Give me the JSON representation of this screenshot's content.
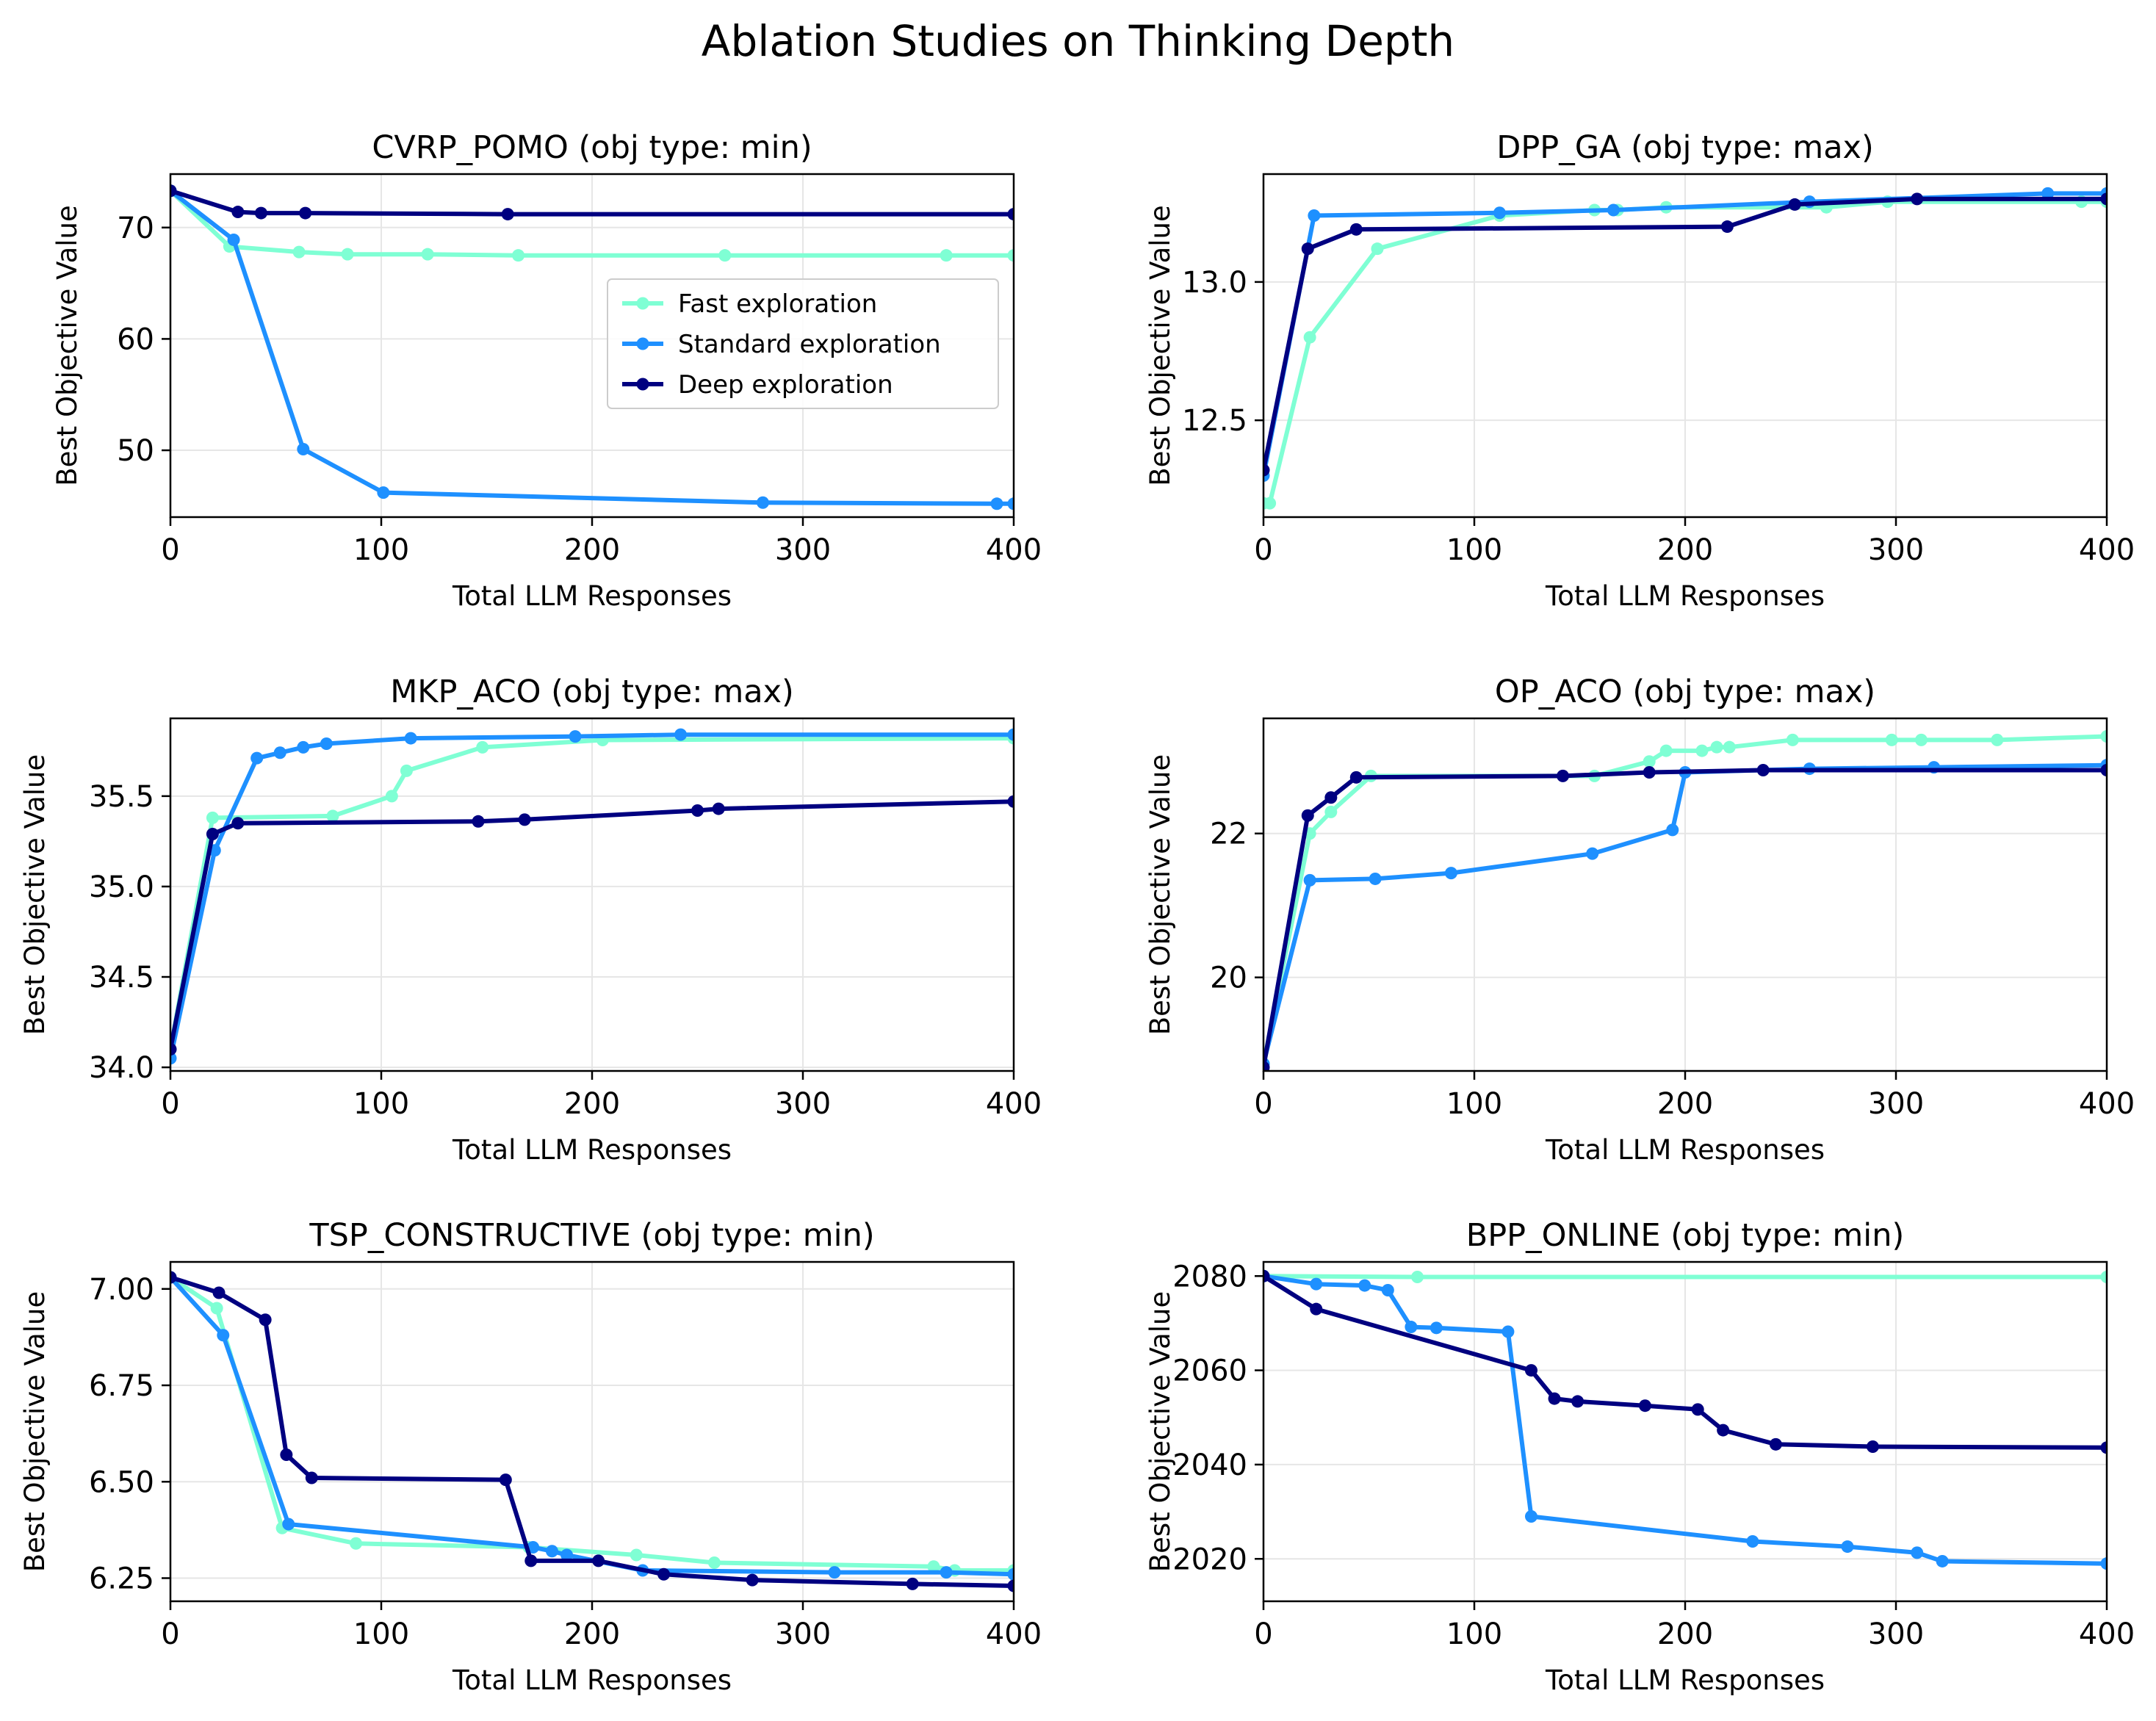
{
  "figure": {
    "title": "Ablation Studies on Thinking Depth"
  },
  "colors": {
    "fast": "#7fffd4",
    "standard": "#1e90ff",
    "deep": "#000080"
  },
  "chart_data": [
    {
      "type": "line",
      "title": "CVRP_POMO (obj type: min)",
      "xlabel": "Total LLM Responses",
      "ylabel": "Best Objective Value",
      "xlim": [
        0,
        400
      ],
      "ylim": [
        44,
        74.8
      ],
      "xticks": [
        0,
        100,
        200,
        300,
        400
      ],
      "yticks": [
        50,
        60,
        70
      ],
      "tick_labels_x": [
        "0",
        "100",
        "200",
        "300",
        "400"
      ],
      "tick_labels_y": [
        "50",
        "60",
        "70"
      ],
      "legend": {
        "position": "right-center",
        "entries": [
          "Fast exploration",
          "Standard exploration",
          "Deep exploration"
        ]
      },
      "series": [
        {
          "name": "Fast exploration",
          "key": "fast",
          "x": [
            0,
            28,
            61,
            84,
            122,
            165,
            263,
            368,
            400
          ],
          "y": [
            73.3,
            68.3,
            67.8,
            67.6,
            67.6,
            67.5,
            67.5,
            67.5,
            67.5
          ]
        },
        {
          "name": "Standard exploration",
          "key": "standard",
          "x": [
            0,
            30,
            63,
            101,
            281,
            392,
            400
          ],
          "y": [
            73.3,
            68.9,
            50.1,
            46.2,
            45.3,
            45.2,
            45.2
          ]
        },
        {
          "name": "Deep exploration",
          "key": "deep",
          "x": [
            0,
            32,
            43,
            64,
            160,
            400
          ],
          "y": [
            73.3,
            71.4,
            71.3,
            71.3,
            71.2,
            71.2
          ]
        }
      ]
    },
    {
      "type": "line",
      "title": "DPP_GA (obj type: max)",
      "xlabel": "Total LLM Responses",
      "ylabel": "Best Objective Value",
      "xlim": [
        0,
        400
      ],
      "ylim": [
        12.15,
        13.39
      ],
      "xticks": [
        0,
        100,
        200,
        300,
        400
      ],
      "yticks": [
        12.5,
        13.0
      ],
      "tick_labels_x": [
        "0",
        "100",
        "200",
        "300",
        "400"
      ],
      "tick_labels_y": [
        "12.5",
        "13.0"
      ],
      "series": [
        {
          "name": "Fast exploration",
          "key": "fast",
          "x": [
            0,
            3,
            22,
            54,
            112,
            157,
            168,
            191,
            267,
            296,
            388,
            400
          ],
          "y": [
            12.2,
            12.2,
            12.8,
            13.12,
            13.24,
            13.26,
            13.26,
            13.27,
            13.27,
            13.29,
            13.29,
            13.29
          ]
        },
        {
          "name": "Standard exploration",
          "key": "standard",
          "x": [
            0,
            24,
            112,
            166,
            259,
            372,
            400
          ],
          "y": [
            12.3,
            13.24,
            13.25,
            13.26,
            13.29,
            13.32,
            13.32
          ]
        },
        {
          "name": "Deep exploration",
          "key": "deep",
          "x": [
            0,
            21,
            44,
            220,
            252,
            310,
            400
          ],
          "y": [
            12.32,
            13.12,
            13.19,
            13.2,
            13.28,
            13.3,
            13.3
          ]
        }
      ]
    },
    {
      "type": "line",
      "title": "MKP_ACO (obj type: max)",
      "xlabel": "Total LLM Responses",
      "ylabel": "Best Objective Value",
      "xlim": [
        0,
        400
      ],
      "ylim": [
        33.98,
        35.93
      ],
      "xticks": [
        0,
        100,
        200,
        300,
        400
      ],
      "yticks": [
        34.0,
        34.5,
        35.0,
        35.5
      ],
      "tick_labels_x": [
        "0",
        "100",
        "200",
        "300",
        "400"
      ],
      "tick_labels_y": [
        "34.0",
        "34.5",
        "35.0",
        "35.5"
      ],
      "series": [
        {
          "name": "Fast exploration",
          "key": "fast",
          "x": [
            0,
            20,
            77,
            105,
            112,
            148,
            205,
            400
          ],
          "y": [
            34.1,
            35.38,
            35.39,
            35.5,
            35.64,
            35.77,
            35.81,
            35.82
          ]
        },
        {
          "name": "Standard exploration",
          "key": "standard",
          "x": [
            0,
            21,
            41,
            52,
            63,
            74,
            114,
            192,
            242,
            400
          ],
          "y": [
            34.05,
            35.2,
            35.71,
            35.74,
            35.77,
            35.79,
            35.82,
            35.83,
            35.84,
            35.84
          ]
        },
        {
          "name": "Deep exploration",
          "key": "deep",
          "x": [
            0,
            20,
            32,
            146,
            168,
            250,
            260,
            400
          ],
          "y": [
            34.1,
            35.29,
            35.35,
            35.36,
            35.37,
            35.42,
            35.43,
            35.47
          ]
        }
      ]
    },
    {
      "type": "line",
      "title": "OP_ACO (obj type: max)",
      "xlabel": "Total LLM Responses",
      "ylabel": "Best Objective Value",
      "xlim": [
        0,
        400
      ],
      "ylim": [
        18.7,
        23.6
      ],
      "xticks": [
        0,
        100,
        200,
        300,
        400
      ],
      "yticks": [
        20,
        22
      ],
      "tick_labels_x": [
        "0",
        "100",
        "200",
        "300",
        "400"
      ],
      "tick_labels_y": [
        "20",
        "22"
      ],
      "series": [
        {
          "name": "Fast exploration",
          "key": "fast",
          "x": [
            0,
            22,
            32,
            51,
            157,
            183,
            191,
            208,
            215,
            221,
            251,
            298,
            312,
            348,
            400
          ],
          "y": [
            18.8,
            22.0,
            22.3,
            22.8,
            22.8,
            23.0,
            23.15,
            23.15,
            23.2,
            23.2,
            23.3,
            23.3,
            23.3,
            23.3,
            23.35
          ]
        },
        {
          "name": "Standard exploration",
          "key": "standard",
          "x": [
            0,
            22,
            53,
            89,
            156,
            194,
            200,
            259,
            318,
            400
          ],
          "y": [
            18.8,
            21.35,
            21.37,
            21.45,
            21.72,
            22.05,
            22.85,
            22.9,
            22.92,
            22.95
          ]
        },
        {
          "name": "Deep exploration",
          "key": "deep",
          "x": [
            0,
            21,
            32,
            44,
            142,
            183,
            237,
            400
          ],
          "y": [
            18.75,
            22.25,
            22.5,
            22.78,
            22.8,
            22.85,
            22.88,
            22.88
          ]
        }
      ]
    },
    {
      "type": "line",
      "title": "TSP_CONSTRUCTIVE (obj type: min)",
      "xlabel": "Total LLM Responses",
      "ylabel": "Best Objective Value",
      "xlim": [
        0,
        400
      ],
      "ylim": [
        6.19,
        7.07
      ],
      "xticks": [
        0,
        100,
        200,
        300,
        400
      ],
      "yticks": [
        6.25,
        6.5,
        6.75,
        7.0
      ],
      "tick_labels_x": [
        "0",
        "100",
        "200",
        "300",
        "400"
      ],
      "tick_labels_y": [
        "6.25",
        "6.50",
        "6.75",
        "7.00"
      ],
      "series": [
        {
          "name": "Fast exploration",
          "key": "fast",
          "x": [
            0,
            22,
            53,
            88,
            170,
            221,
            258,
            362,
            372,
            400
          ],
          "y": [
            7.03,
            6.95,
            6.38,
            6.34,
            6.33,
            6.31,
            6.29,
            6.28,
            6.27,
            6.27
          ]
        },
        {
          "name": "Standard exploration",
          "key": "standard",
          "x": [
            0,
            25,
            56,
            172,
            181,
            188,
            224,
            315,
            368,
            400
          ],
          "y": [
            7.03,
            6.88,
            6.39,
            6.33,
            6.32,
            6.31,
            6.27,
            6.265,
            6.265,
            6.26
          ]
        },
        {
          "name": "Deep exploration",
          "key": "deep",
          "x": [
            0,
            23,
            45,
            55,
            67,
            159,
            171,
            203,
            234,
            276,
            352,
            400
          ],
          "y": [
            7.03,
            6.99,
            6.92,
            6.57,
            6.51,
            6.505,
            6.295,
            6.295,
            6.26,
            6.245,
            6.235,
            6.23
          ]
        }
      ]
    },
    {
      "type": "line",
      "title": "BPP_ONLINE (obj type: min)",
      "xlabel": "Total LLM Responses",
      "ylabel": "Best Objective Value",
      "xlim": [
        0,
        400
      ],
      "ylim": [
        2011,
        2083
      ],
      "xticks": [
        0,
        100,
        200,
        300,
        400
      ],
      "yticks": [
        2020,
        2040,
        2060,
        2080
      ],
      "tick_labels_x": [
        "0",
        "100",
        "200",
        "300",
        "400"
      ],
      "tick_labels_y": [
        "2020",
        "2040",
        "2060",
        "2080"
      ],
      "series": [
        {
          "name": "Fast exploration",
          "key": "fast",
          "x": [
            0,
            73,
            400
          ],
          "y": [
            2080,
            2079.8,
            2079.8
          ]
        },
        {
          "name": "Standard exploration",
          "key": "standard",
          "x": [
            0,
            25,
            48,
            59,
            70,
            82,
            116,
            127,
            232,
            277,
            310,
            322,
            400
          ],
          "y": [
            2080,
            2078.3,
            2078,
            2077,
            2069.2,
            2069,
            2068.2,
            2029,
            2023.7,
            2022.6,
            2021.3,
            2019.5,
            2019
          ]
        },
        {
          "name": "Deep exploration",
          "key": "deep",
          "x": [
            0,
            25,
            127,
            138,
            149,
            181,
            206,
            218,
            243,
            289,
            400
          ],
          "y": [
            2080,
            2073,
            2060,
            2054,
            2053.4,
            2052.5,
            2051.7,
            2047.3,
            2044.3,
            2043.8,
            2043.6
          ]
        }
      ]
    }
  ]
}
